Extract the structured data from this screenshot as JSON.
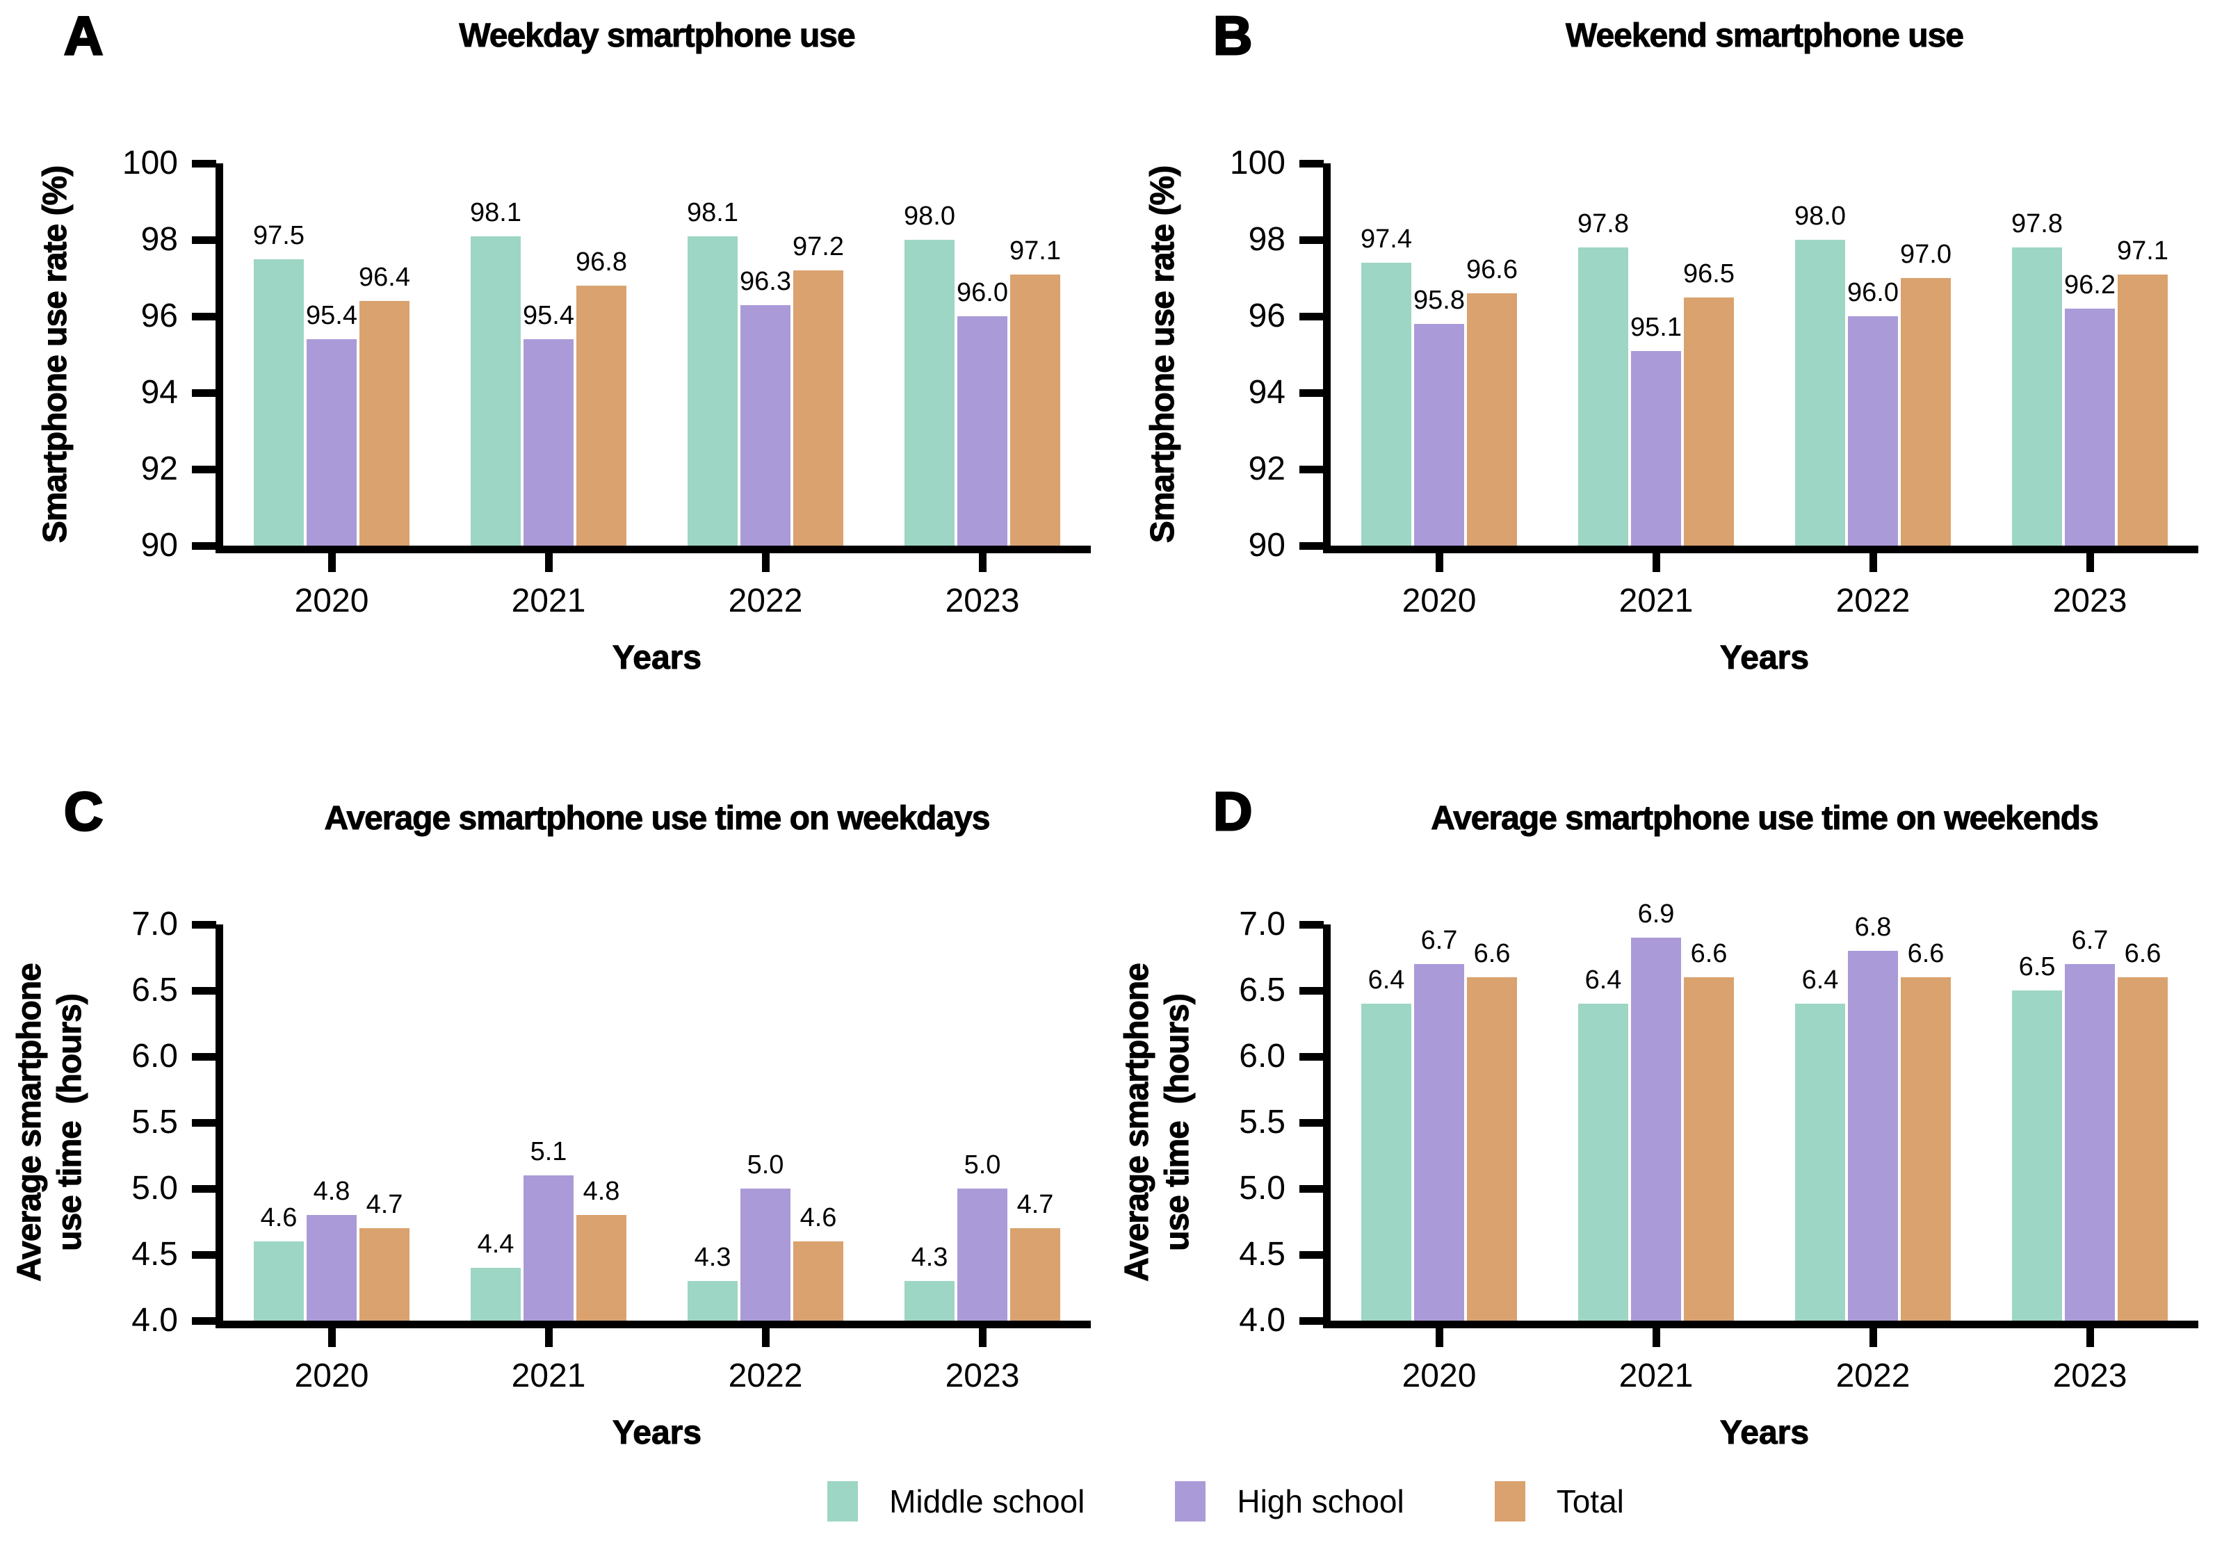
{
  "legend": {
    "items": [
      {
        "label": "Middle school",
        "color": "#9dd6c4"
      },
      {
        "label": "High school",
        "color": "#ab9ad8"
      },
      {
        "label": "Total",
        "color": "#d9a26f"
      }
    ]
  },
  "chart_data": [
    {
      "type": "bar",
      "panel_letter": "A",
      "title": "Weekday smartphone use",
      "xlabel": "Years",
      "ylabel_lines": [
        "Smartphone use rate (%)"
      ],
      "ylim": [
        90,
        100
      ],
      "yticks": [
        "90",
        "92",
        "94",
        "96",
        "98",
        "100"
      ],
      "categories": [
        "2020",
        "2021",
        "2022",
        "2023"
      ],
      "legend_position": "bottom-figure",
      "grid": false,
      "series": [
        {
          "name": "Middle school",
          "values": [
            "97.5",
            "98.1",
            "98.1",
            "98.0"
          ]
        },
        {
          "name": "High school",
          "values": [
            "95.4",
            "95.4",
            "96.3",
            "96.0"
          ]
        },
        {
          "name": "Total",
          "values": [
            "96.4",
            "96.8",
            "97.2",
            "97.1"
          ]
        }
      ]
    },
    {
      "type": "bar",
      "panel_letter": "B",
      "title": "Weekend smartphone use",
      "xlabel": "Years",
      "ylabel_lines": [
        "Smartphone use rate (%)"
      ],
      "ylim": [
        90,
        100
      ],
      "yticks": [
        "90",
        "92",
        "94",
        "96",
        "98",
        "100"
      ],
      "categories": [
        "2020",
        "2021",
        "2022",
        "2023"
      ],
      "legend_position": "bottom-figure",
      "grid": false,
      "series": [
        {
          "name": "Middle school",
          "values": [
            "97.4",
            "97.8",
            "98.0",
            "97.8"
          ]
        },
        {
          "name": "High school",
          "values": [
            "95.8",
            "95.1",
            "96.0",
            "96.2"
          ]
        },
        {
          "name": "Total",
          "values": [
            "96.6",
            "96.5",
            "97.0",
            "97.1"
          ]
        }
      ]
    },
    {
      "type": "bar",
      "panel_letter": "C",
      "title": "Average smartphone use time on weekdays",
      "xlabel": "Years",
      "ylabel_lines": [
        "Average smartphone",
        "use time  (hours)"
      ],
      "ylim": [
        4.0,
        7.0
      ],
      "yticks": [
        "4.0",
        "4.5",
        "5.0",
        "5.5",
        "6.0",
        "6.5",
        "7.0"
      ],
      "categories": [
        "2020",
        "2021",
        "2022",
        "2023"
      ],
      "legend_position": "bottom-figure",
      "grid": false,
      "series": [
        {
          "name": "Middle school",
          "values": [
            "4.6",
            "4.4",
            "4.3",
            "4.3"
          ]
        },
        {
          "name": "High school",
          "values": [
            "4.8",
            "5.1",
            "5.0",
            "5.0"
          ]
        },
        {
          "name": "Total",
          "values": [
            "4.7",
            "4.8",
            "4.6",
            "4.7"
          ]
        }
      ]
    },
    {
      "type": "bar",
      "panel_letter": "D",
      "title": "Average smartphone use time on weekends",
      "xlabel": "Years",
      "ylabel_lines": [
        "Average smartphone",
        "use time  (hours)"
      ],
      "ylim": [
        4.0,
        7.0
      ],
      "yticks": [
        "4.0",
        "4.5",
        "5.0",
        "5.5",
        "6.0",
        "6.5",
        "7.0"
      ],
      "categories": [
        "2020",
        "2021",
        "2022",
        "2023"
      ],
      "legend_position": "bottom-figure",
      "grid": false,
      "series": [
        {
          "name": "Middle school",
          "values": [
            "6.4",
            "6.4",
            "6.4",
            "6.5"
          ]
        },
        {
          "name": "High school",
          "values": [
            "6.7",
            "6.9",
            "6.8",
            "6.7"
          ]
        },
        {
          "name": "Total",
          "values": [
            "6.6",
            "6.6",
            "6.6",
            "6.6"
          ]
        }
      ]
    }
  ]
}
